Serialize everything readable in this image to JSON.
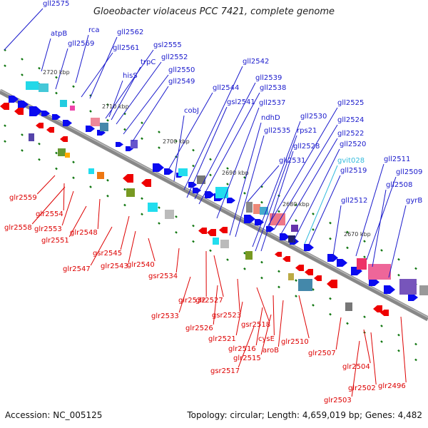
{
  "title": "Gloeobacter violaceus PCC 7421, complete genome",
  "footer": {
    "accession": "Accession: NC_005125",
    "topology": "Topology: circular; Length: 4,659,019 bp; Genes: 4,482"
  },
  "colors": {
    "forward_label": "#1a1acc",
    "reverse_label": "#dd0000",
    "rna_label": "#33bbdd",
    "backbone": "#888888",
    "tick": "#117711"
  },
  "scale_labels": [
    "2720 kbp",
    "2710 kbp",
    "2700 kbp",
    "2690 kbp",
    "2680 kbp",
    "2670 kbp"
  ],
  "forward_labels": [
    "gll2575",
    "atpB",
    "rca",
    "gll2569",
    "gll2562",
    "gll2561",
    "gsl2555",
    "trpC",
    "gll2552",
    "hisS",
    "gll2550",
    "gll2549",
    "gll2544",
    "gll2542",
    "gll2539",
    "gll2538",
    "gsl2541",
    "gll2537",
    "cobJ",
    "ndhD",
    "gll2530",
    "rps21",
    "gll2535",
    "gll2525",
    "gll2524",
    "gll2522",
    "gll2528",
    "gll2520",
    "gll2531",
    "gvit028",
    "gll2519",
    "gll2511",
    "gll2509",
    "gll2508",
    "gll2512",
    "gyrB"
  ],
  "reverse_labels": [
    "glr2559",
    "glr2554",
    "glr2558",
    "glr2553",
    "glr2551",
    "glr2548",
    "gsr2545",
    "glr2547",
    "glr2543",
    "glr2540",
    "gsr2534",
    "glr2532",
    "glr2527",
    "glr2533",
    "gsr2523",
    "glr2526",
    "gsr2518",
    "glr2521",
    "cysE",
    "glr2516",
    "aroB",
    "glr2510",
    "glr2515",
    "glr2507",
    "gsr2517",
    "glr2504",
    "glr2502",
    "glr2496",
    "glr2503"
  ]
}
